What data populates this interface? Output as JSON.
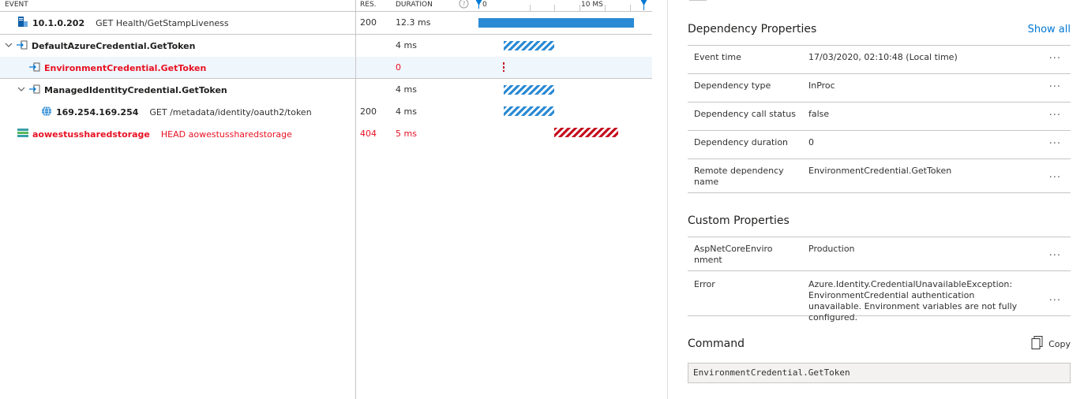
{
  "headers": {
    "event": "EVENT",
    "res": "RES.",
    "duration": "DURATION",
    "tick0": "0",
    "tick10": "10 MS"
  },
  "rows": [
    {
      "name": "10.1.0.202",
      "detail": "GET Health/GetStampLiveness",
      "res": "200",
      "duration": "12.3 ms"
    },
    {
      "name": "DefaultAzureCredential.GetToken",
      "detail": "",
      "res": "",
      "duration": "4 ms"
    },
    {
      "name": "EnvironmentCredential.GetToken",
      "detail": "",
      "res": "",
      "duration": "0"
    },
    {
      "name": "ManagedIdentityCredential.GetToken",
      "detail": "",
      "res": "",
      "duration": "4 ms"
    },
    {
      "name": "169.254.169.254",
      "detail": "GET /metadata/identity/oauth2/token",
      "res": "200",
      "duration": "4 ms"
    },
    {
      "name": "aowestussharedstorage",
      "detail": "HEAD aowestussharedstorage",
      "res": "404",
      "duration": "5 ms"
    }
  ],
  "panel": {
    "dependency_title": "Dependency Properties",
    "show_all": "Show all",
    "dependency_props": [
      {
        "key": "Event time",
        "value": "17/03/2020, 02:10:48 (Local time)"
      },
      {
        "key": "Dependency type",
        "value": "InProc"
      },
      {
        "key": "Dependency call status",
        "value": "false"
      },
      {
        "key": "Dependency duration",
        "value": "0"
      },
      {
        "key": "Remote dependency name",
        "value": "EnvironmentCredential.GetToken"
      }
    ],
    "custom_title": "Custom Properties",
    "custom_props": [
      {
        "key": "AspNetCoreEnvironment",
        "value": "Production"
      },
      {
        "key": "Error",
        "value": "Azure.Identity.CredentialUnavailableException: EnvironmentCredential authentication unavailable. Environment variables are not fully configured."
      }
    ],
    "more_label": "···",
    "command_title": "Command",
    "copy_label": "Copy",
    "command_text": "EnvironmentCredential.GetToken"
  },
  "colors": {
    "accent": "#0078d4",
    "bar": "#2a8ad4",
    "error": "#e81123"
  }
}
